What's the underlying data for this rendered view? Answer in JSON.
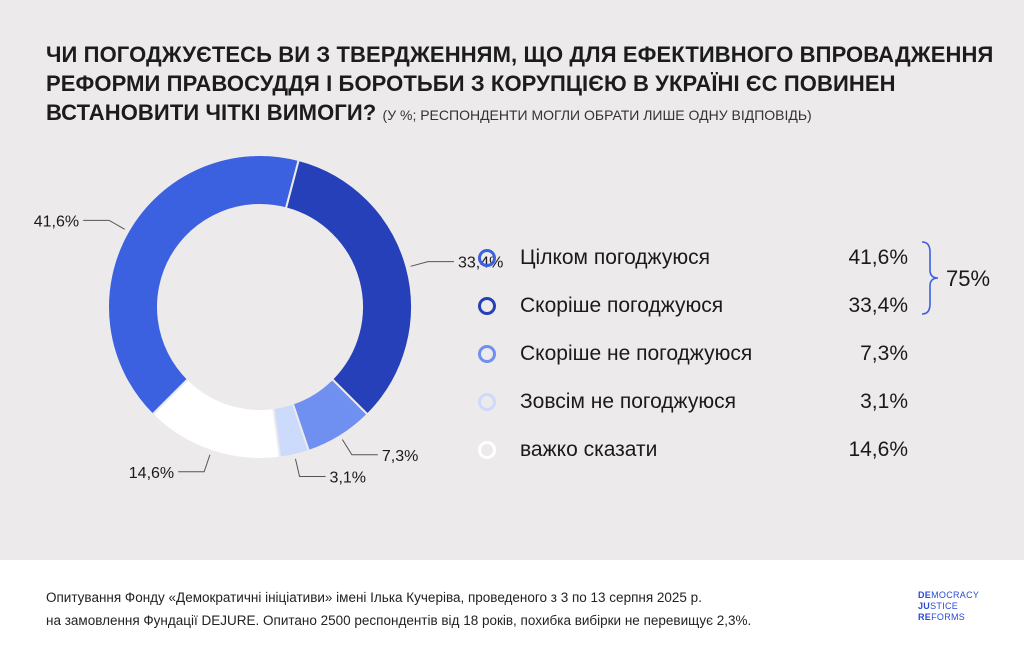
{
  "title": {
    "main": "ЧИ ПОГОДЖУЄТЕСЬ ВИ З ТВЕРДЖЕННЯМ, ЩО ДЛЯ ЕФЕКТИВНОГО ВПРОВАДЖЕННЯ РЕФОРМИ ПРАВОСУДДЯ І БОРОТЬБИ З КОРУПЦІЄЮ В УКРАЇНІ ЄС ПОВИНЕН ВСТАНОВИТИ ЧІТКІ ВИМОГИ?",
    "sub": "(У %; РЕСПОНДЕНТИ МОГЛИ ОБРАТИ ЛИШЕ ОДНУ ВІДПОВІДЬ)"
  },
  "chart_data": {
    "type": "pie",
    "variant": "donut",
    "categories": [
      "Цілком погоджуюся",
      "Скоріше погоджуюся",
      "Скоріше не погоджуюся",
      "Зовсім не погоджуюся",
      "важко сказати"
    ],
    "values": [
      41.6,
      33.4,
      7.3,
      3.1,
      14.6
    ],
    "value_labels": [
      "41,6%",
      "33,4%",
      "7,3%",
      "3,1%",
      "14,6%"
    ],
    "legend_values": [
      "41,6%",
      "33,4%",
      "7,3%",
      "3,1%",
      "14,6%"
    ],
    "colors": [
      "#3b61e0",
      "#2540b8",
      "#6f90f0",
      "#ccdafc",
      "#ffffff"
    ],
    "dot_borders": [
      "#3b61e0",
      "#2540b8",
      "#6f90f0",
      "#ccdafc",
      "#ffffff"
    ],
    "unit": "%",
    "legend_placement": "right",
    "group_total": {
      "label": "75%",
      "covers": [
        "Цілком погоджуюся",
        "Скоріше погоджуюся"
      ]
    }
  },
  "footer": {
    "line1": "Опитування Фонду «Демократичні ініціативи» імені Ілька Кучеріва, проведеного з 3 по 13 серпня 2025 р.",
    "line2": "на замовлення Фундації DEJURE. Опитано 2500 респондентів від 18 років, похибка вибірки не перевищує 2,3%.",
    "logo": {
      "line1_bold": "DE",
      "line1_rest": "MOCRACY",
      "line2_bold": "JU",
      "line2_rest": "STICE",
      "line3_bold": "RE",
      "line3_rest": "FORMS"
    }
  }
}
